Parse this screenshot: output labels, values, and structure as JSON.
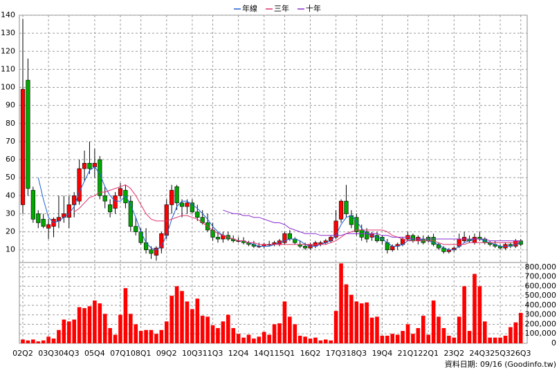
{
  "chart_data": {
    "type": "candlestick",
    "categories": [
      "02Q2",
      null,
      null,
      null,
      null,
      "03Q3",
      null,
      null,
      null,
      "04Q3",
      null,
      null,
      null,
      null,
      "05Q4",
      null,
      null,
      null,
      null,
      "07Q1",
      null,
      null,
      null,
      "08Q1",
      null,
      null,
      null,
      null,
      "09Q2",
      null,
      null,
      null,
      null,
      "10Q3",
      null,
      null,
      null,
      "11Q3",
      null,
      null,
      null,
      null,
      "12Q4",
      null,
      null,
      null,
      null,
      "14Q1",
      null,
      null,
      null,
      "15Q1",
      null,
      null,
      null,
      null,
      "16Q2",
      null,
      null,
      null,
      null,
      "17Q3",
      null,
      null,
      null,
      "18Q3",
      null,
      null,
      null,
      null,
      "19Q4",
      null,
      null,
      null,
      null,
      "21Q1",
      null,
      null,
      null,
      "22Q1",
      null,
      null,
      null,
      null,
      "23Q2",
      null,
      null,
      null,
      null,
      "24Q3",
      null,
      null,
      null,
      "25Q3",
      null,
      null,
      null,
      "26Q3"
    ],
    "open": [
      35,
      104,
      43,
      30,
      27,
      22,
      23,
      26,
      28,
      28,
      35,
      37,
      55,
      58,
      56,
      60,
      40,
      35,
      33,
      40,
      43,
      37,
      23,
      20,
      14,
      10,
      7,
      11,
      18,
      35,
      45,
      36,
      34,
      36,
      31,
      28,
      25,
      21,
      17,
      16,
      18,
      16,
      15,
      15,
      14,
      13,
      12,
      12,
      13,
      13,
      13,
      14,
      19,
      16,
      13,
      12,
      11,
      12,
      13,
      14,
      15,
      17,
      27,
      37,
      29,
      28,
      21,
      20,
      17,
      18,
      17,
      14,
      10,
      12,
      13,
      16,
      18,
      15,
      16,
      17,
      17,
      13,
      11,
      9,
      10,
      12,
      15,
      16,
      14,
      17,
      16,
      14,
      13,
      12,
      11,
      13,
      12,
      15
    ],
    "high": [
      138,
      116,
      45,
      32,
      30,
      27,
      28,
      40,
      40,
      40,
      42,
      60,
      65,
      70,
      66,
      62,
      45,
      38,
      42,
      47,
      46,
      40,
      28,
      22,
      22,
      12,
      12,
      20,
      38,
      46,
      46,
      38,
      38,
      38,
      35,
      32,
      30,
      25,
      20,
      20,
      20,
      18,
      17,
      17,
      15,
      15,
      14,
      14,
      15,
      15,
      16,
      20,
      21,
      17,
      15,
      14,
      14,
      15,
      15,
      16,
      18,
      32,
      38,
      46,
      32,
      30,
      24,
      22,
      20,
      20,
      18,
      16,
      13,
      14,
      17,
      20,
      19,
      18,
      18,
      18,
      19,
      14,
      12,
      11,
      12,
      19,
      20,
      18,
      19,
      20,
      17,
      15,
      15,
      13,
      14,
      14,
      16,
      16
    ],
    "low": [
      30,
      40,
      25,
      22,
      22,
      16,
      17,
      22,
      25,
      22,
      28,
      35,
      48,
      52,
      50,
      38,
      33,
      28,
      30,
      38,
      33,
      20,
      18,
      13,
      8,
      5,
      4,
      8,
      16,
      30,
      32,
      28,
      30,
      30,
      26,
      24,
      20,
      15,
      14,
      14,
      15,
      14,
      14,
      13,
      12,
      11,
      11,
      11,
      12,
      12,
      12,
      13,
      15,
      13,
      11,
      10,
      10,
      11,
      12,
      13,
      14,
      16,
      25,
      28,
      22,
      18,
      15,
      14,
      15,
      14,
      13,
      8,
      9,
      10,
      12,
      15,
      14,
      13,
      13,
      14,
      12,
      10,
      8,
      8,
      9,
      11,
      14,
      14,
      13,
      15,
      13,
      12,
      11,
      10,
      10,
      11,
      11,
      12
    ],
    "close": [
      99,
      44,
      27,
      25,
      23,
      24,
      27,
      28,
      30,
      35,
      40,
      55,
      58,
      55,
      58,
      40,
      37,
      31,
      40,
      44,
      36,
      23,
      20,
      14,
      10,
      8,
      11,
      19,
      35,
      43,
      36,
      34,
      36,
      31,
      28,
      25,
      21,
      17,
      16,
      18,
      16,
      15,
      15,
      14,
      13,
      12,
      12,
      13,
      13,
      14,
      15,
      19,
      16,
      14,
      12,
      11,
      13,
      14,
      14,
      15,
      17,
      26,
      37,
      30,
      24,
      20,
      17,
      16,
      19,
      15,
      15,
      10,
      12,
      13,
      16,
      18,
      15,
      17,
      14,
      15,
      13,
      11,
      9,
      10,
      11,
      16,
      17,
      15,
      17,
      16,
      14,
      13,
      12,
      11,
      13,
      12,
      15,
      13
    ],
    "up_color": "#ff0000",
    "down_color": "#00a800",
    "ylim": [
      3,
      140
    ],
    "yticks": [
      10,
      20,
      30,
      40,
      50,
      60,
      70,
      80,
      90,
      100,
      110,
      120,
      130,
      140
    ],
    "grid": true,
    "series": [
      {
        "name": "年線",
        "color": "#1a5fd6",
        "values": [
          null,
          null,
          null,
          50,
          38,
          28,
          25,
          26,
          28,
          30,
          34,
          42,
          48,
          54,
          56,
          52,
          45,
          40,
          37,
          37,
          40,
          35,
          28,
          20,
          14,
          11,
          10,
          12,
          18,
          27,
          34,
          37,
          37,
          35,
          33,
          30,
          27,
          23,
          20,
          18,
          17,
          16,
          15,
          15,
          14,
          13,
          12,
          12,
          12,
          13,
          14,
          15,
          16,
          16,
          15,
          13,
          12,
          12,
          13,
          14,
          15,
          18,
          24,
          28,
          29,
          26,
          22,
          19,
          18,
          17,
          16,
          14,
          12,
          12,
          13,
          15,
          16,
          16,
          15,
          15,
          14,
          13,
          11,
          10,
          10,
          12,
          14,
          15,
          16,
          16,
          15,
          14,
          13,
          12,
          12,
          12,
          13,
          14
        ]
      },
      {
        "name": "三年",
        "color": "#e0306a",
        "values": [
          null,
          null,
          null,
          null,
          null,
          null,
          null,
          null,
          null,
          null,
          31,
          33,
          36,
          39,
          40,
          42,
          42,
          43,
          44,
          45,
          46,
          44,
          40,
          35,
          30,
          27,
          26,
          26,
          26,
          27,
          28,
          29,
          29,
          28,
          27,
          25,
          23,
          21,
          19,
          18,
          17,
          16,
          15,
          15,
          14,
          14,
          13,
          13,
          13,
          13,
          13,
          13,
          13,
          13,
          13,
          13,
          13,
          13,
          13,
          13,
          14,
          15,
          17,
          19,
          20,
          21,
          21,
          21,
          21,
          21,
          21,
          20,
          18,
          17,
          16,
          15,
          15,
          15,
          15,
          15,
          15,
          14,
          13,
          13,
          13,
          13,
          13,
          14,
          14,
          14,
          14,
          14,
          14,
          14,
          14,
          14,
          14,
          15
        ]
      },
      {
        "name": "十年",
        "color": "#8a2bd0",
        "values": [
          null,
          null,
          null,
          null,
          null,
          null,
          null,
          null,
          null,
          null,
          null,
          null,
          null,
          null,
          null,
          null,
          null,
          null,
          null,
          null,
          null,
          null,
          null,
          null,
          null,
          null,
          null,
          null,
          null,
          null,
          null,
          null,
          null,
          null,
          null,
          null,
          null,
          null,
          null,
          32,
          31,
          30,
          30,
          29,
          29,
          28,
          28,
          27,
          26,
          25,
          25,
          24,
          22,
          21,
          20,
          19,
          19,
          19,
          18,
          18,
          18,
          18,
          18,
          19,
          19,
          19,
          19,
          19,
          19,
          19,
          18,
          18,
          17,
          17,
          17,
          17,
          16,
          16,
          16,
          16,
          16,
          16,
          16,
          16,
          16,
          16,
          16,
          16,
          16,
          16,
          16,
          15,
          15,
          15,
          15,
          15,
          15,
          15
        ]
      }
    ],
    "volume": {
      "color": "#ff0000",
      "values": [
        40000,
        30000,
        40000,
        20000,
        30000,
        70000,
        50000,
        140000,
        250000,
        230000,
        250000,
        380000,
        370000,
        390000,
        450000,
        420000,
        310000,
        160000,
        90000,
        300000,
        580000,
        310000,
        200000,
        130000,
        140000,
        140000,
        100000,
        140000,
        230000,
        500000,
        600000,
        550000,
        440000,
        360000,
        470000,
        290000,
        280000,
        190000,
        160000,
        230000,
        300000,
        160000,
        100000,
        60000,
        90000,
        50000,
        70000,
        120000,
        90000,
        200000,
        210000,
        440000,
        280000,
        200000,
        80000,
        70000,
        50000,
        60000,
        30000,
        40000,
        30000,
        340000,
        840000,
        620000,
        510000,
        440000,
        420000,
        430000,
        270000,
        280000,
        80000,
        80000,
        100000,
        90000,
        130000,
        200000,
        100000,
        160000,
        290000,
        90000,
        450000,
        280000,
        160000,
        80000,
        60000,
        280000,
        600000,
        130000,
        730000,
        600000,
        230000,
        60000,
        60000,
        60000,
        80000,
        170000,
        220000,
        320000
      ],
      "ylim": [
        0,
        850000
      ],
      "yticks": [
        0,
        {
          "value": 100000,
          "label": "100,000"
        },
        {
          "value": 200000,
          "label": "200,000"
        },
        {
          "value": 300000,
          "label": "300,000"
        },
        {
          "value": 400000,
          "label": "400,000"
        },
        {
          "value": 500000,
          "label": "500,000"
        },
        {
          "value": 600000,
          "label": "600,000"
        },
        {
          "value": 700000,
          "label": "700,000"
        },
        {
          "value": 800000,
          "label": "800,000"
        }
      ]
    },
    "note": "資料日期: 09/16  (Goodinfo.tw)"
  }
}
